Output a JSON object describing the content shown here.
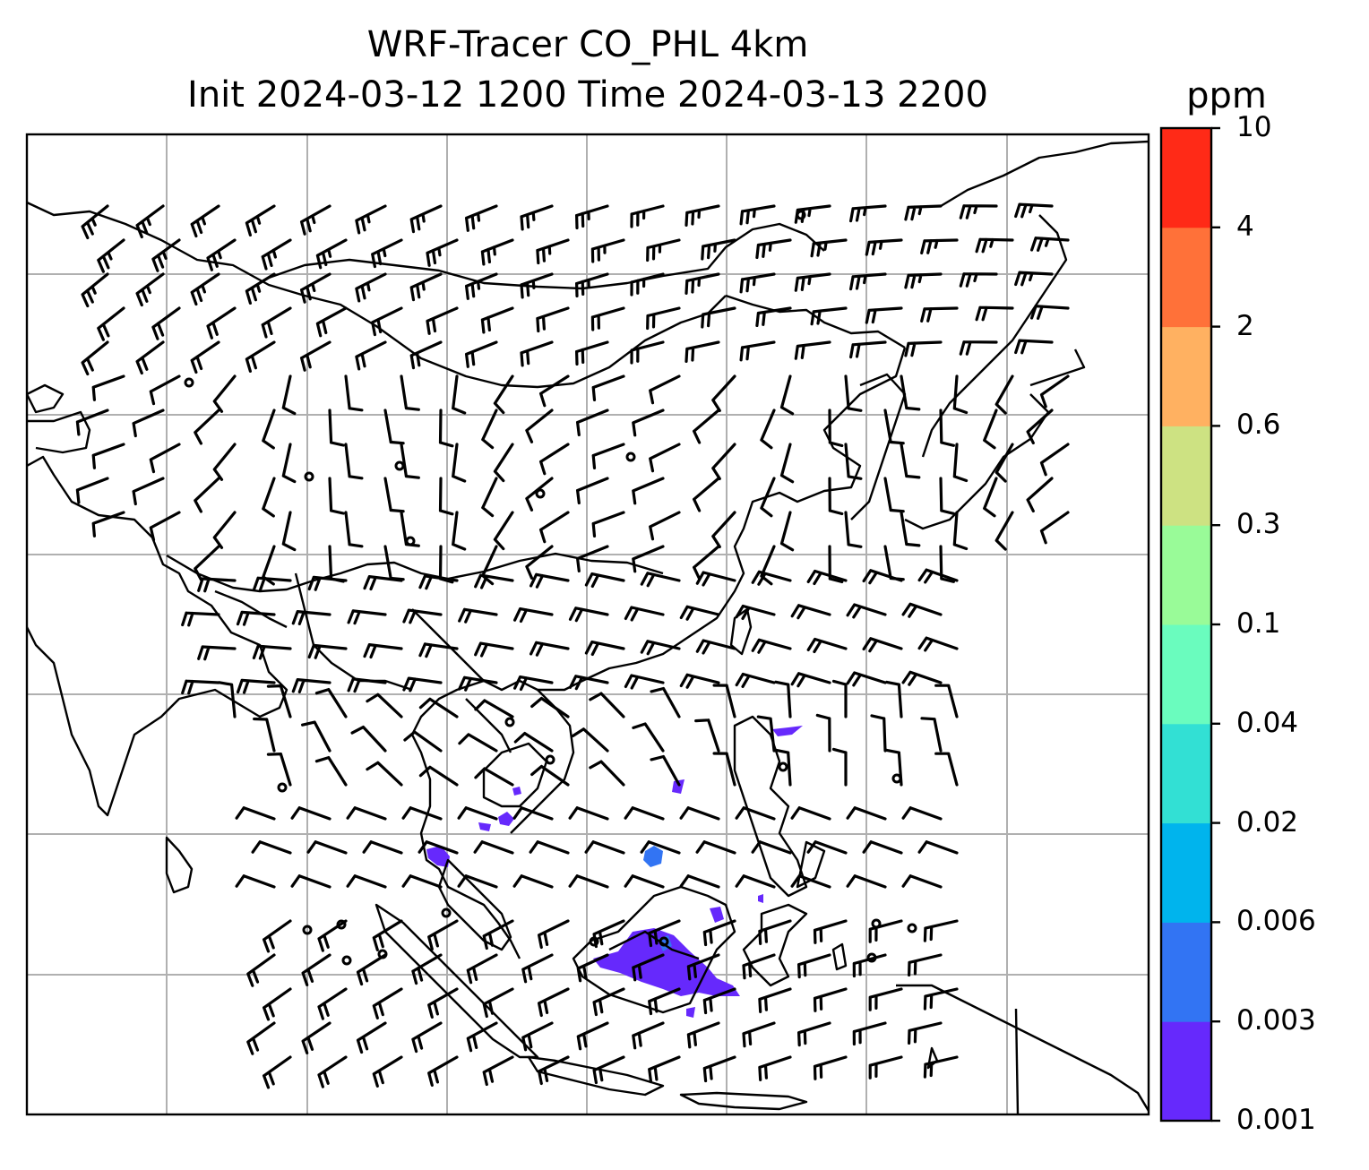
{
  "title": {
    "line1": "WRF-Tracer CO_PHL 4km",
    "line2": "Init 2024-03-12 1200 Time 2024-03-13 2200"
  },
  "colorbar": {
    "label": "ppm",
    "ticks": [
      "0.001",
      "0.003",
      "0.006",
      "0.02",
      "0.04",
      "0.1",
      "0.3",
      "0.6",
      "2",
      "4",
      "10"
    ],
    "colors": [
      "#6629fc",
      "#3274f3",
      "#00b4ed",
      "#32e0d4",
      "#6afcbe",
      "#99fb98",
      "#cde282",
      "#ffb161",
      "#ff7139",
      "#ff2a17"
    ]
  },
  "map": {
    "gridlines": true,
    "features": [
      "coastlines",
      "country-borders",
      "wind-barbs",
      "tracer-concentration"
    ],
    "tracer_value_range_ppm": [
      "0.001",
      "0.006"
    ]
  }
}
